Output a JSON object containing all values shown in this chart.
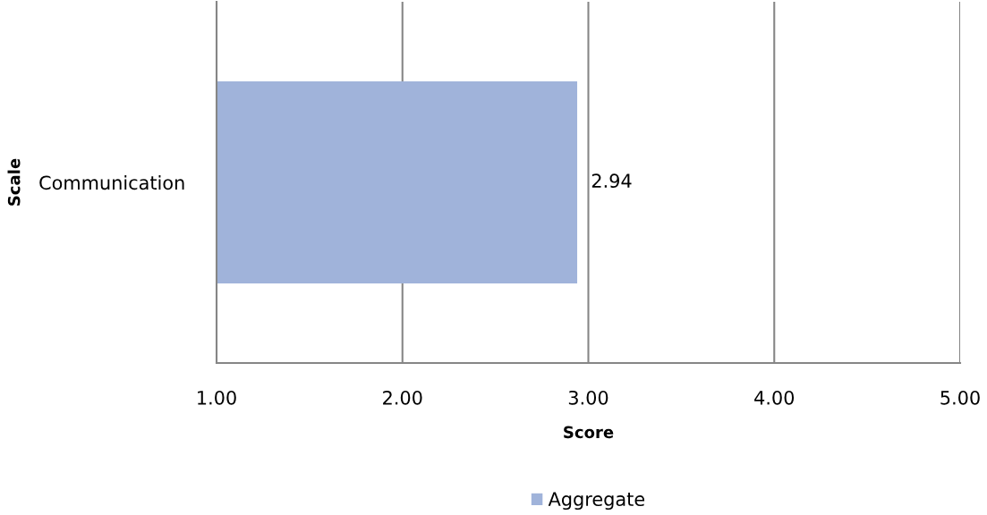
{
  "chart_data": {
    "type": "bar",
    "orientation": "horizontal",
    "xlabel": "Score",
    "ylabel": "Scale",
    "categories": [
      "Communication"
    ],
    "series": [
      {
        "name": "Aggregate",
        "color": "#a0b3da",
        "values": [
          2.94
        ]
      }
    ],
    "xlim": [
      1,
      5
    ],
    "xticks": [
      {
        "value": 1,
        "label": "1.00"
      },
      {
        "value": 2,
        "label": "2.00"
      },
      {
        "value": 3,
        "label": "3.00"
      },
      {
        "value": 4,
        "label": "4.00"
      },
      {
        "value": 5,
        "label": "5.00"
      }
    ],
    "grid": "x",
    "legend": "bottom",
    "data_labels": true
  }
}
